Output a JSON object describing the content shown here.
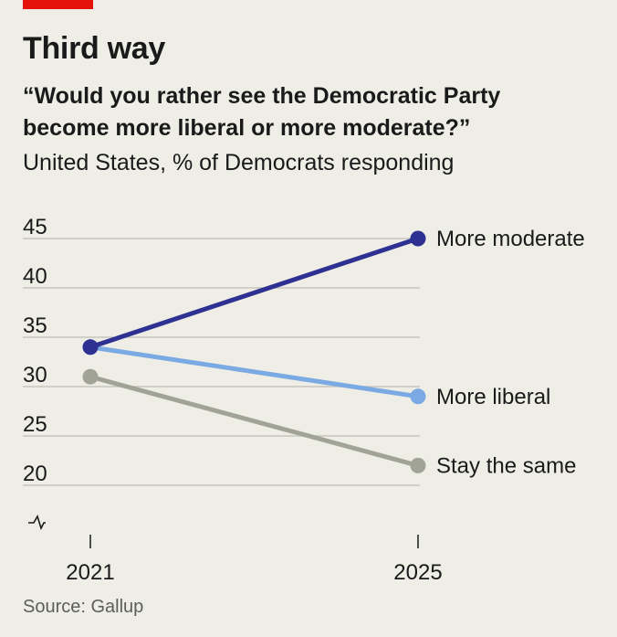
{
  "header": {
    "title": "Third way",
    "subtitle_lines": [
      "“Would you rather see the Democratic Party",
      "become more liberal or more moderate?”"
    ],
    "caption": "United States, % of Democrats responding"
  },
  "footer": {
    "source": "Source: Gallup"
  },
  "colors": {
    "accent": "#e3120b",
    "background": "#eeede6",
    "more_moderate": "#2e3192",
    "more_liberal": "#7aa9e3",
    "stay_the_same": "#a2a397"
  },
  "chart_data": {
    "type": "line",
    "title": "Third way",
    "subtitle": "“Would you rather see the Democratic Party become more liberal or more moderate?”",
    "caption": "United States, % of Democrats responding",
    "x": [
      "2021",
      "2025"
    ],
    "xlabel": "",
    "ylabel": "",
    "ylim": [
      20,
      45
    ],
    "y_ticks": [
      45,
      40,
      35,
      30,
      25,
      20
    ],
    "axis_break": true,
    "grid": true,
    "legend": "direct labels at line ends",
    "series": [
      {
        "name": "More moderate",
        "values": [
          34,
          45
        ],
        "color": "#2e3192"
      },
      {
        "name": "More liberal",
        "values": [
          34,
          29
        ],
        "color": "#7aa9e3"
      },
      {
        "name": "Stay the same",
        "values": [
          31,
          22
        ],
        "color": "#a2a397"
      }
    ]
  }
}
